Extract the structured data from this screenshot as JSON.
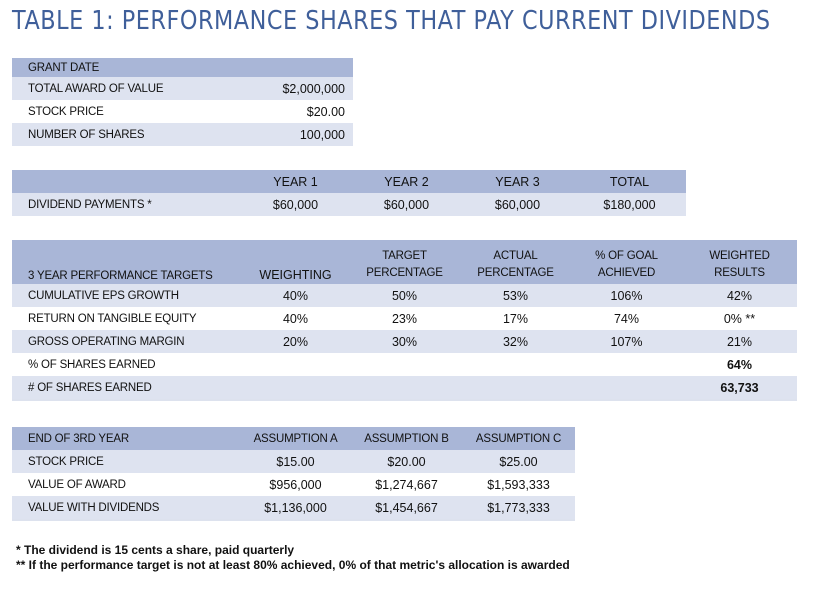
{
  "title": "TABLE 1:  PERFORMANCE SHARES THAT PAY CURRENT DIVIDENDS",
  "grant": {
    "header": "GRANT DATE",
    "rows": [
      {
        "label": "TOTAL AWARD OF VALUE",
        "value": "$2,000,000"
      },
      {
        "label": "STOCK PRICE",
        "value": "$20.00"
      },
      {
        "label": "NUMBER OF SHARES",
        "value": "100,000"
      }
    ]
  },
  "dividends": {
    "columns": [
      "YEAR 1",
      "YEAR 2",
      "YEAR 3",
      "TOTAL"
    ],
    "label": "DIVIDEND PAYMENTS *",
    "values": [
      "$60,000",
      "$60,000",
      "$60,000",
      "$180,000"
    ]
  },
  "performance": {
    "header": {
      "label": "3 YEAR PERFORMANCE TARGETS",
      "weighting": "WEIGHTING",
      "target_1": "TARGET",
      "target_2": "PERCENTAGE",
      "actual_1": "ACTUAL",
      "actual_2": "PERCENTAGE",
      "goal_1": "% OF GOAL",
      "goal_2": "ACHIEVED",
      "weighted_1": "WEIGHTED",
      "weighted_2": "RESULTS"
    },
    "rows": [
      {
        "label": "CUMULATIVE EPS GROWTH",
        "weighting": "40%",
        "target": "50%",
        "actual": "53%",
        "goal": "106%",
        "weighted": "42%"
      },
      {
        "label": "RETURN ON TANGIBLE EQUITY",
        "weighting": "40%",
        "target": "23%",
        "actual": "17%",
        "goal": "74%",
        "weighted": "0% **"
      },
      {
        "label": "GROSS OPERATING MARGIN",
        "weighting": "20%",
        "target": "30%",
        "actual": "32%",
        "goal": "107%",
        "weighted": "21%"
      }
    ],
    "pct_earned_label": "% OF SHARES EARNED",
    "pct_earned_value": "64%",
    "num_earned_label": "# OF SHARES EARNED",
    "num_earned_value": "63,733"
  },
  "end_of_year": {
    "header": {
      "label": "END OF 3RD YEAR",
      "a": "ASSUMPTION A",
      "b": "ASSUMPTION B",
      "c": "ASSUMPTION C"
    },
    "rows": [
      {
        "label": "STOCK PRICE",
        "a": "$15.00",
        "b": "$20.00",
        "c": "$25.00"
      },
      {
        "label": "VALUE OF AWARD",
        "a": "$956,000",
        "b": "$1,274,667",
        "c": "$1,593,333"
      },
      {
        "label": "VALUE WITH DIVIDENDS",
        "a": "$1,136,000",
        "b": "$1,454,667",
        "c": "$1,773,333"
      }
    ]
  },
  "notes": {
    "note1": "* The dividend is 15 cents a share, paid quarterly",
    "note2": "** If the performance target is not at least 80% achieved, 0% of that metric's allocation is awarded"
  }
}
